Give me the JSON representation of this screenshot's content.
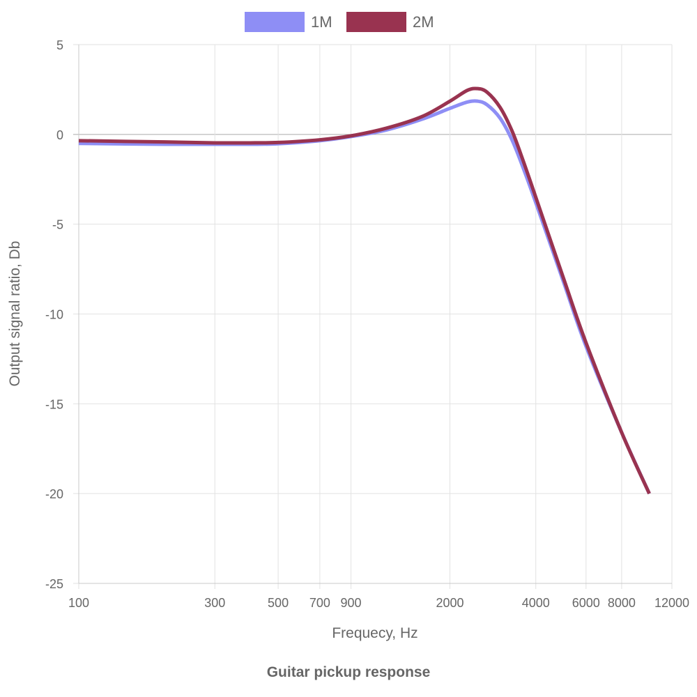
{
  "chart_data": {
    "type": "line",
    "title": "Guitar pickup response",
    "xlabel": "Frequecy, Hz",
    "ylabel": "Output signal ratio, Db",
    "x_scale": "log",
    "xlim": [
      100,
      12000
    ],
    "ylim": [
      -25,
      5
    ],
    "x_ticks": [
      100,
      300,
      500,
      700,
      900,
      2000,
      4000,
      6000,
      8000,
      12000
    ],
    "y_ticks": [
      5,
      0,
      -5,
      -10,
      -15,
      -20,
      -25
    ],
    "grid": true,
    "legend": "top-center",
    "series": [
      {
        "name": "1M",
        "color": "#8e8ef5",
        "x": [
          100,
          200,
          300,
          400,
          500,
          700,
          900,
          1200,
          1600,
          2000,
          2300,
          2500,
          2700,
          3000,
          3300,
          3600,
          4000,
          5000,
          6000,
          8000,
          10000
        ],
        "y": [
          -0.5,
          -0.55,
          -0.55,
          -0.55,
          -0.52,
          -0.35,
          -0.12,
          0.25,
          0.85,
          1.45,
          1.8,
          1.85,
          1.65,
          0.9,
          -0.3,
          -1.8,
          -3.8,
          -8.2,
          -11.8,
          -16.6,
          -20
        ]
      },
      {
        "name": "2M",
        "color": "#993350",
        "x": [
          100,
          200,
          300,
          400,
          500,
          700,
          900,
          1200,
          1600,
          2000,
          2300,
          2500,
          2700,
          3000,
          3300,
          3600,
          4000,
          5000,
          6000,
          8000,
          10000
        ],
        "y": [
          -0.35,
          -0.42,
          -0.47,
          -0.47,
          -0.45,
          -0.3,
          -0.08,
          0.35,
          1.0,
          1.85,
          2.45,
          2.55,
          2.35,
          1.5,
          0.2,
          -1.4,
          -3.5,
          -8.0,
          -11.6,
          -16.6,
          -20
        ]
      }
    ]
  }
}
